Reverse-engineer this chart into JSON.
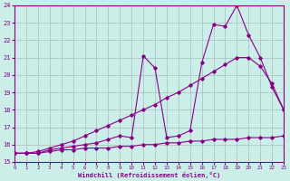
{
  "xlabel": "Windchill (Refroidissement éolien,°C)",
  "xlim": [
    0,
    23
  ],
  "ylim": [
    15,
    24
  ],
  "yticks": [
    15,
    16,
    17,
    18,
    19,
    20,
    21,
    22,
    23,
    24
  ],
  "xticks": [
    0,
    1,
    2,
    3,
    4,
    5,
    6,
    7,
    8,
    9,
    10,
    11,
    12,
    13,
    14,
    15,
    16,
    17,
    18,
    19,
    20,
    21,
    22,
    23
  ],
  "background_color": "#cceee8",
  "grid_color": "#aabbbb",
  "line_color": "#880088",
  "line1_x": [
    0,
    1,
    2,
    3,
    4,
    5,
    6,
    7,
    8,
    9,
    10,
    11,
    12,
    13,
    14,
    15,
    16,
    17,
    18,
    19,
    20,
    21,
    22,
    23
  ],
  "line1_y": [
    15.5,
    15.5,
    15.5,
    15.6,
    15.7,
    15.7,
    15.8,
    15.8,
    15.8,
    15.9,
    15.9,
    16.0,
    16.0,
    16.1,
    16.1,
    16.2,
    16.2,
    16.3,
    16.3,
    16.3,
    16.4,
    16.4,
    16.4,
    16.5
  ],
  "line2_x": [
    0,
    1,
    2,
    3,
    4,
    5,
    6,
    7,
    8,
    9,
    10,
    11,
    12,
    13,
    14,
    15,
    16,
    17,
    18,
    19,
    20,
    21,
    22,
    23
  ],
  "line2_y": [
    15.5,
    15.5,
    15.6,
    15.8,
    16.0,
    16.2,
    16.5,
    16.8,
    17.1,
    17.4,
    17.7,
    18.0,
    18.3,
    18.7,
    19.0,
    19.4,
    19.8,
    20.2,
    20.6,
    21.0,
    21.0,
    20.5,
    19.5,
    18.0
  ],
  "line3_x": [
    0,
    1,
    2,
    3,
    4,
    5,
    6,
    7,
    8,
    9,
    10,
    11,
    12,
    13,
    14,
    15,
    16,
    17,
    18,
    19,
    20,
    21,
    22,
    23
  ],
  "line3_y": [
    15.5,
    15.5,
    15.5,
    15.7,
    15.8,
    15.9,
    16.0,
    16.1,
    16.3,
    16.5,
    16.4,
    21.1,
    20.4,
    16.4,
    16.5,
    16.8,
    20.7,
    22.9,
    22.8,
    24.0,
    22.3,
    21.0,
    19.3,
    18.0
  ]
}
